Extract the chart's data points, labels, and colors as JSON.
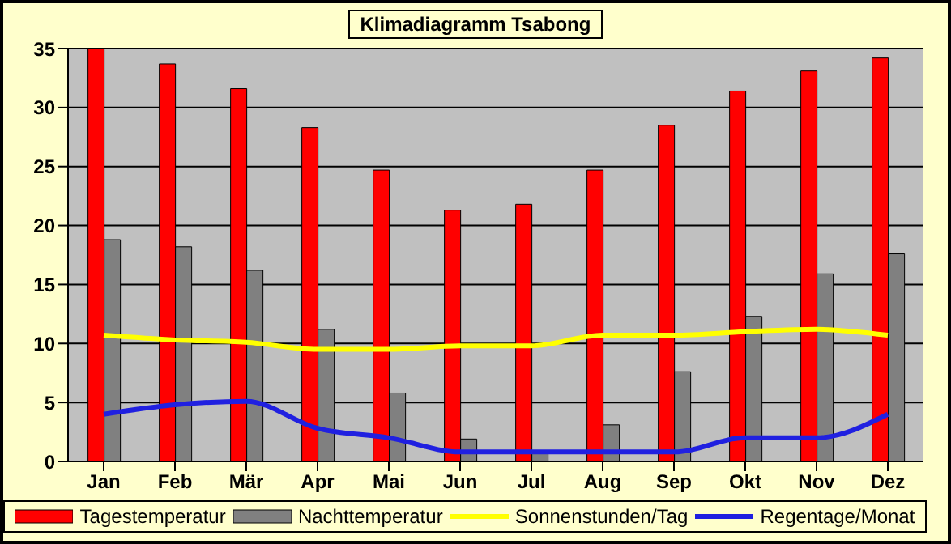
{
  "chart_data": {
    "type": "bar",
    "title": "Klimadiagramm Tsabong",
    "categories": [
      "Jan",
      "Feb",
      "Mär",
      "Apr",
      "Mai",
      "Jun",
      "Jul",
      "Aug",
      "Sep",
      "Okt",
      "Nov",
      "Dez"
    ],
    "series": [
      {
        "name": "Tagestemperatur",
        "color": "#ff0000",
        "values": [
          35,
          33.7,
          31.6,
          28.3,
          24.7,
          21.3,
          21.8,
          24.7,
          28.5,
          31.4,
          33.1,
          34.2
        ]
      },
      {
        "name": "Nachttemperatur",
        "color": "#808080",
        "values": [
          18.8,
          18.2,
          16.2,
          11.2,
          5.8,
          1.9,
          0.9,
          3.1,
          7.6,
          12.3,
          15.9,
          17.6
        ]
      },
      {
        "name": "Sonnenstunden/Tag",
        "type": "line",
        "color": "#ffff00",
        "values": [
          10.7,
          10.3,
          10.1,
          9.5,
          9.5,
          9.8,
          9.8,
          10.7,
          10.7,
          11,
          11.2,
          10.7
        ]
      },
      {
        "name": "Regentage/Monat",
        "type": "line",
        "color": "#2020e0",
        "values": [
          4,
          4.8,
          5.1,
          2.8,
          2,
          0.8,
          0.8,
          0.8,
          0.8,
          2,
          2,
          4
        ]
      }
    ],
    "ylim": [
      0,
      35
    ],
    "yticks": [
      0,
      5,
      10,
      15,
      20,
      25,
      30,
      35
    ],
    "grid": "y",
    "legend": "bottom"
  }
}
